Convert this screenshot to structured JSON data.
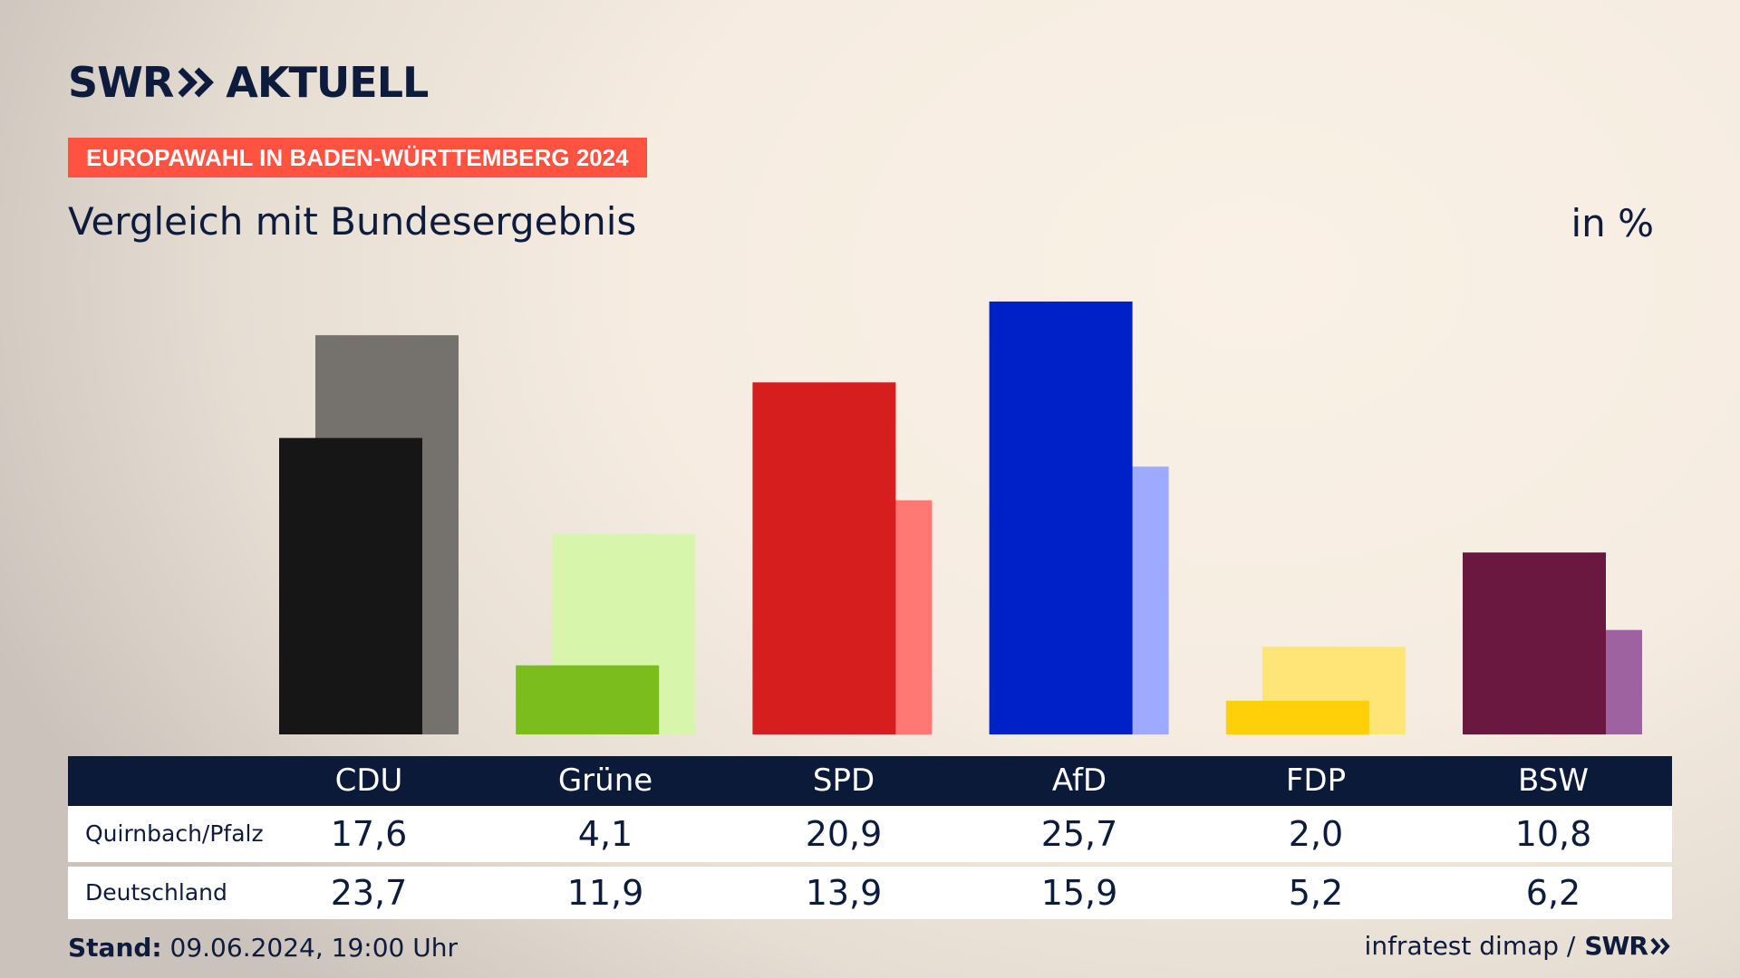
{
  "brand": {
    "logo_left": "SWR",
    "logo_right": "AKTUELL",
    "footer_logo": "SWR"
  },
  "badge": "EUROPAWAHL IN BADEN-WÜRTTEMBERG 2024",
  "subtitle": "Vergleich mit Bundesergebnis",
  "unit_label": "in %",
  "row_labels": [
    "Quirnbach/Pfalz",
    "Deutschland"
  ],
  "footer": {
    "stand_label": "Stand:",
    "stand_value": "09.06.2024, 19:00 Uhr",
    "source": "infratest dimap /"
  },
  "colors": {
    "accent_badge": "#ff5240",
    "navy": "#0c1a3a"
  },
  "chart_data": {
    "type": "bar",
    "categories": [
      "CDU",
      "Grüne",
      "SPD",
      "AfD",
      "FDP",
      "BSW"
    ],
    "series": [
      {
        "name": "Quirnbach/Pfalz",
        "values": [
          17.6,
          4.1,
          20.9,
          25.7,
          2.0,
          10.8
        ],
        "colors": [
          "#161616",
          "#7abd1c",
          "#d61e1e",
          "#0020c8",
          "#ffd00a",
          "#6b1840"
        ]
      },
      {
        "name": "Deutschland",
        "values": [
          23.7,
          11.9,
          13.9,
          15.9,
          5.2,
          6.2
        ],
        "colors": [
          "#75716d",
          "#d7f5ab",
          "#ff7873",
          "#9eaaff",
          "#ffe477",
          "#9d629f"
        ]
      }
    ],
    "value_labels": {
      "Quirnbach/Pfalz": [
        "17,6",
        "4,1",
        "20,9",
        "25,7",
        "2,0",
        "10,8"
      ],
      "Deutschland": [
        "23,7",
        "11,9",
        "13,9",
        "15,9",
        "5,2",
        "6,2"
      ]
    },
    "ylim": [
      0,
      30
    ],
    "grid": false,
    "legend": "table-below"
  }
}
